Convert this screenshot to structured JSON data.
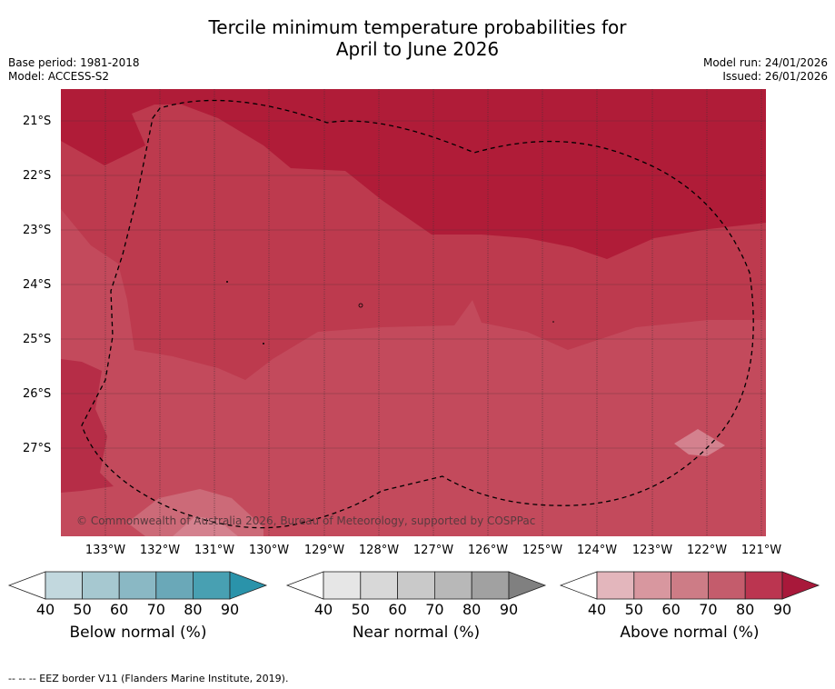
{
  "header": {
    "title_line1": "Tercile minimum temperature probabilities for",
    "title_line2": "April to June 2026",
    "base_period": "Base period: 1981-2018",
    "model": "Model: ACCESS-S2",
    "model_run": "Model run: 24/01/2026",
    "issued": "Issued: 26/01/2026"
  },
  "map": {
    "latitude_labels": [
      "21°S",
      "22°S",
      "23°S",
      "24°S",
      "25°S",
      "26°S",
      "27°S"
    ],
    "longitude_labels": [
      "133°W",
      "132°W",
      "131°W",
      "130°W",
      "129°W",
      "128°W",
      "127°W",
      "126°W",
      "125°W",
      "124°W",
      "123°W",
      "122°W",
      "121°W"
    ],
    "copyright": "© Commonwealth of Australia 2026, Bureau of Meteorology, supported by COSPPac",
    "colors": {
      "above_90": "#b01c38",
      "above_80": "#bd3a4e",
      "above_70": "#c34a5c",
      "above_60": "#d4818e",
      "gridline": "#3a2a2e"
    }
  },
  "legends": [
    {
      "title": "Below normal (%)",
      "ticks": [
        "40",
        "50",
        "60",
        "70",
        "80",
        "90"
      ],
      "colors": [
        "#c2d8de",
        "#a6c8d0",
        "#8ab8c4",
        "#6aa8b8",
        "#48a0b2",
        "#2a93aa"
      ]
    },
    {
      "title": "Near normal (%)",
      "ticks": [
        "40",
        "50",
        "60",
        "70",
        "80",
        "90"
      ],
      "colors": [
        "#e6e6e6",
        "#d8d8d8",
        "#c9c9c9",
        "#b8b8b8",
        "#a1a1a1",
        "#808080"
      ]
    },
    {
      "title": "Above normal (%)",
      "ticks": [
        "40",
        "50",
        "60",
        "70",
        "80",
        "90"
      ],
      "colors": [
        "#e3b6bc",
        "#d8979f",
        "#cd7c86",
        "#c45c6c",
        "#bb3550",
        "#a8183a"
      ]
    }
  ],
  "footnote": "--  --  -- EEZ border V11 (Flanders Marine Institute, 2019)."
}
